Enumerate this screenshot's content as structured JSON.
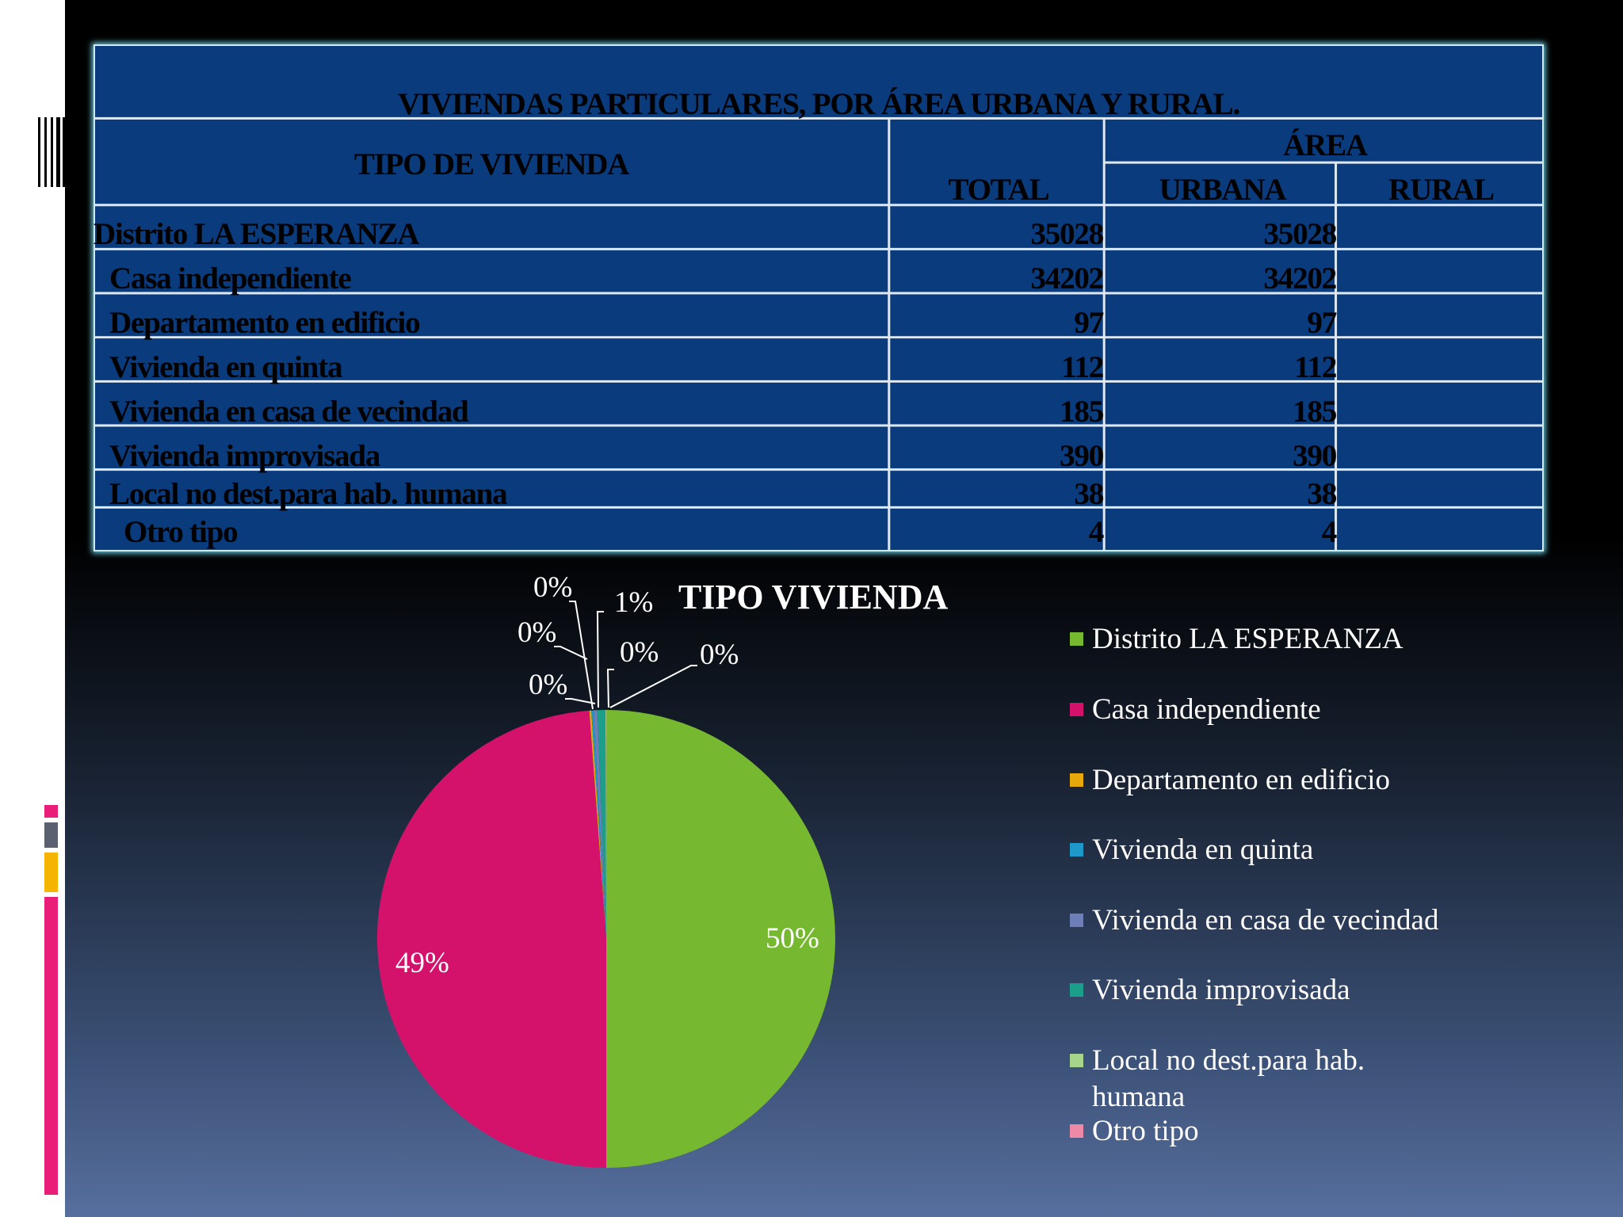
{
  "table": {
    "title": "VIVIENDAS PARTICULARES, POR ÁREA URBANA Y RURAL.",
    "headers": {
      "tipo": "TIPO DE VIVIENDA",
      "area": "ÁREA",
      "total": "TOTAL",
      "urbana": "URBANA",
      "rural": "RURAL"
    },
    "rows": [
      {
        "label": "Distrito LA ESPERANZA",
        "total": "35028",
        "urbana": "35028",
        "rural": ""
      },
      {
        "label": "Casa independiente",
        "total": "34202",
        "urbana": "34202",
        "rural": ""
      },
      {
        "label": "Departamento en edificio",
        "total": "97",
        "urbana": "97",
        "rural": ""
      },
      {
        "label": "Vivienda en quinta",
        "total": "112",
        "urbana": "112",
        "rural": ""
      },
      {
        "label": "Vivienda en casa de vecindad",
        "total": "185",
        "urbana": "185",
        "rural": ""
      },
      {
        "label": "Vivienda improvisada",
        "total": "390",
        "urbana": "390",
        "rural": ""
      },
      {
        "label": "Local no dest.para hab. humana",
        "total": "38",
        "urbana": "38",
        "rural": ""
      },
      {
        "label": "Otro tipo",
        "total": "4",
        "urbana": "4",
        "rural": ""
      }
    ],
    "colors": {
      "background": "#0a3b7c",
      "glow": "#6fd3e8"
    }
  },
  "chart_data": {
    "type": "pie",
    "title": "TIPO VIVIENDA",
    "legend_position": "right",
    "categories": [
      "Distrito LA ESPERANZA",
      "Casa independiente",
      "Departamento en edificio",
      "Vivienda en quinta",
      "Vivienda en casa de vecindad",
      "Vivienda improvisada",
      "Local no dest.para hab. humana",
      "Otro tipo"
    ],
    "values": [
      35028,
      34202,
      97,
      112,
      185,
      390,
      38,
      4
    ],
    "data_labels": [
      "50%",
      "49%",
      "0%",
      "0%",
      "0%",
      "1%",
      "0%",
      "0%"
    ],
    "colors": [
      "#76b82f",
      "#d4116b",
      "#e7a80c",
      "#1e98c8",
      "#6d7fb6",
      "#1b9e8a",
      "#a8d58c",
      "#ee8aa7"
    ]
  },
  "decorations": {
    "accent_colors": [
      "#e81e78",
      "#5a6070",
      "#f5b400",
      "#e81e78"
    ]
  }
}
